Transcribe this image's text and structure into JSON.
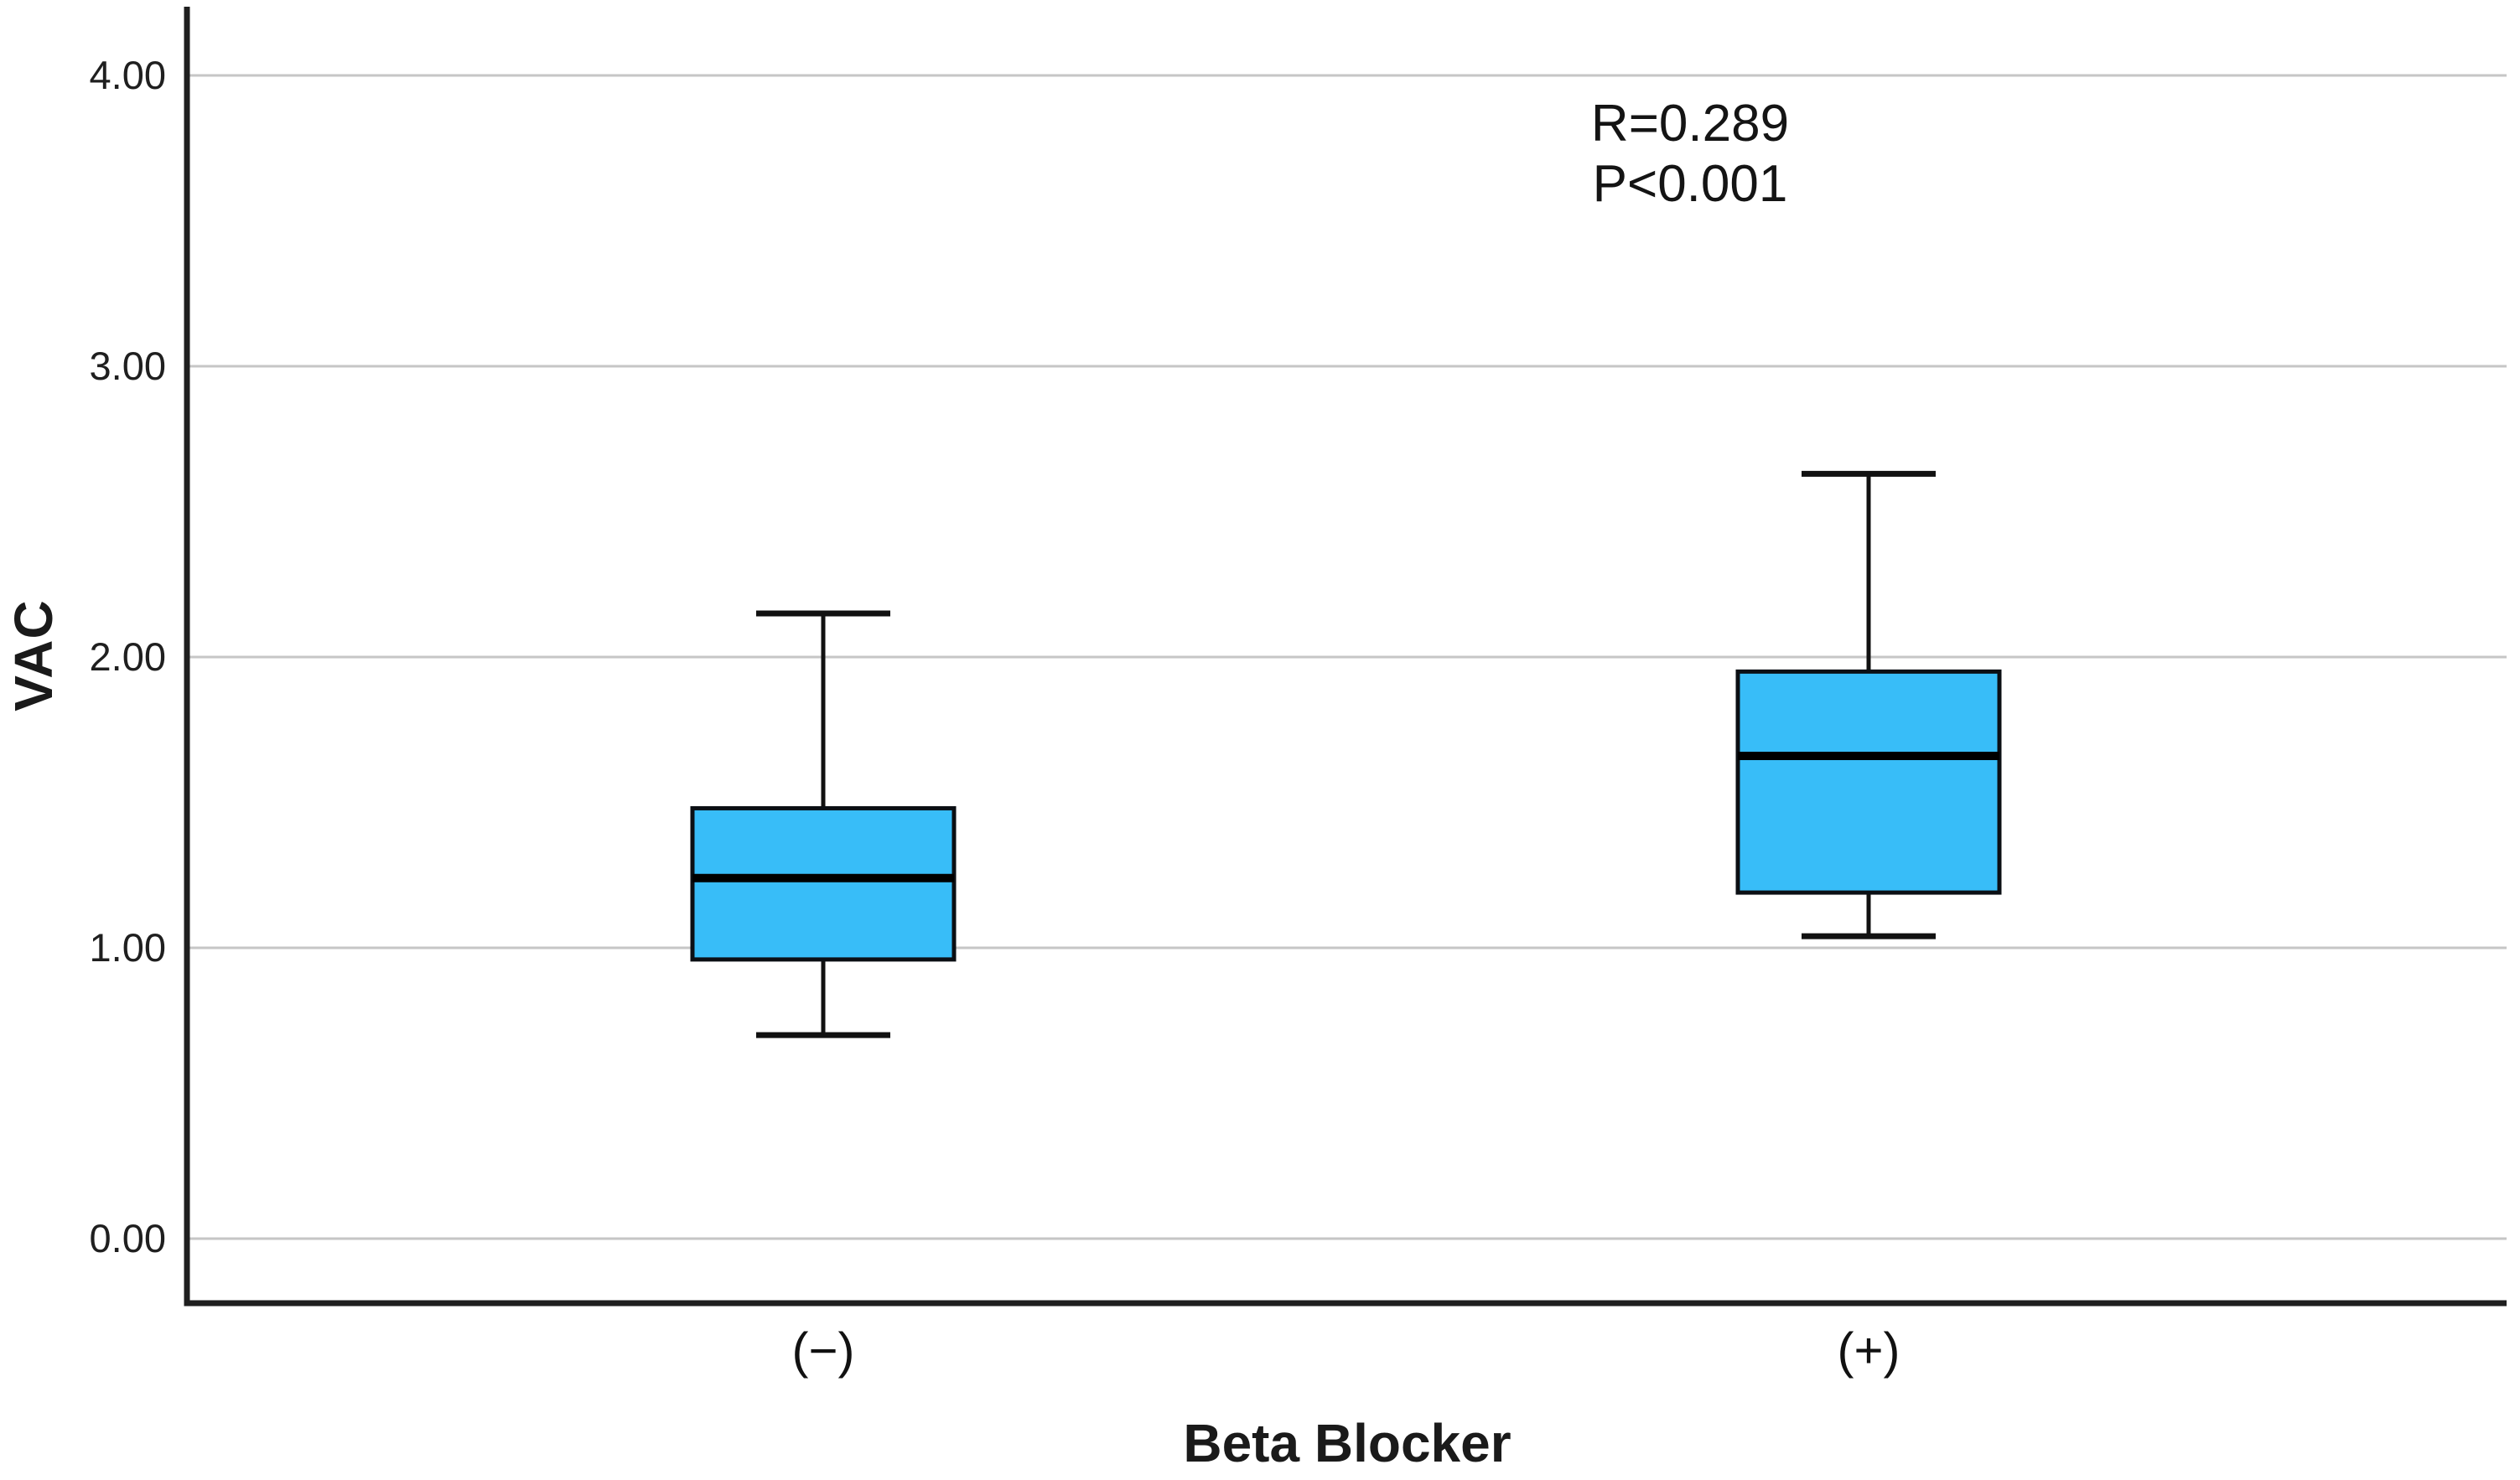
{
  "chart_data": {
    "type": "boxplot",
    "title": "",
    "xlabel": "Beta Blocker",
    "ylabel": "VAC",
    "categories": [
      "(−)",
      "(+)"
    ],
    "y_ticks": [
      {
        "label": "0.00",
        "value": 0
      },
      {
        "label": "1.00",
        "value": 1
      },
      {
        "label": "2.00",
        "value": 2
      },
      {
        "label": "3.00",
        "value": 3
      },
      {
        "label": "4.00",
        "value": 4
      }
    ],
    "ylim": [
      -0.22,
      4.23
    ],
    "grid": "horizontal",
    "legend": "none",
    "series": [
      {
        "name": "(−)",
        "min": 0.7,
        "q1": 0.96,
        "median": 1.24,
        "q3": 1.48,
        "max": 2.15
      },
      {
        "name": "(+)",
        "min": 1.04,
        "q1": 1.19,
        "median": 1.66,
        "q3": 1.95,
        "max": 2.63
      }
    ],
    "annotation": [
      "R=0.289",
      "P<0.001"
    ],
    "colors": {
      "box_fill": "#38BDF8",
      "box_border": "#0B0F14",
      "median": "#000000",
      "whisker": "#111111",
      "grid": "#C6C6C6",
      "axis": "#1F1F1F",
      "text": "#1A1A1A",
      "background": "#FFFFFF"
    }
  }
}
